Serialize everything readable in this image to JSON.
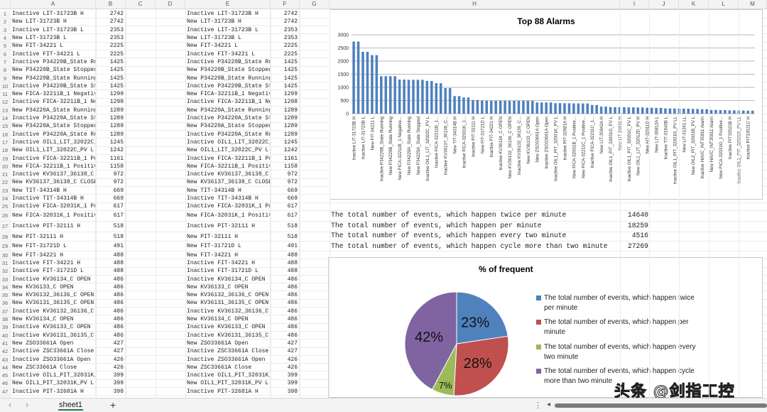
{
  "columns": [
    "A",
    "B",
    "C",
    "D",
    "E",
    "F",
    "G",
    "H",
    "I",
    "J",
    "K",
    "L",
    "M"
  ],
  "rows": [
    [
      "Inactive LIT-31723B H",
      "2742"
    ],
    [
      "New LIT-31723B H",
      "2742"
    ],
    [
      "Inactive LIT-31723B L",
      "2353"
    ],
    [
      "New LIT-31723B L",
      "2353"
    ],
    [
      "New FIT-34221 L",
      "2225"
    ],
    [
      "Inactive FIT-34221 L",
      "2225"
    ],
    [
      "Inactive P34220B_State Ru",
      "1425"
    ],
    [
      "New P34220B_State Stopped",
      "1425"
    ],
    [
      "New P34220B_State Running",
      "1425"
    ],
    [
      "Inactive P34220B_State St",
      "1425"
    ],
    [
      "New FICA-32211B_1 Negativ",
      "1299"
    ],
    [
      "Inactive FICA-32211B_1 Ne",
      "1298"
    ],
    [
      "New P34220A_State Running",
      "1289"
    ],
    [
      "Inactive P34220A_State St",
      "1289"
    ],
    [
      "New P34220A_State Stopped",
      "1289"
    ],
    [
      "Inactive P34220A_State Ru",
      "1289"
    ],
    [
      "Inactive OIL1_LIT_32022C_",
      "1245"
    ],
    [
      "New OIL1_LIT_32022C_PV L",
      "1242"
    ],
    [
      "Inactive FICA-32211B_1 Po",
      "1161"
    ],
    [
      "New FICA-32211B_1 Positiv",
      "1158"
    ],
    [
      "Inactive KV36137_36138_C",
      "972"
    ],
    [
      "New KV36137_36138_C CLOSE",
      "972"
    ],
    [
      "New TIT-34314B H",
      "669"
    ],
    [
      "Inactive TIT-34314B H",
      "669"
    ],
    [
      "Inactive FICA-32031K_1 Po",
      "617"
    ],
    [
      "New FICA-32031K_1 Positiv",
      "617"
    ],
    [
      "Inactive PIT-32111 H",
      "518"
    ],
    [
      "New PIT-32111 H",
      "518"
    ],
    [
      "New FIT-31721D L",
      "491"
    ],
    [
      "New FIT-34221 H",
      "488"
    ],
    [
      "Inactive FIT-34221 H",
      "488"
    ],
    [
      "Inactive FIT-31721D L",
      "488"
    ],
    [
      "Inactive KV36134_C OPEN",
      "486"
    ],
    [
      "New KV36133_C OPEN",
      "486"
    ],
    [
      "New KV36132_36136_C OPEN",
      "486"
    ],
    [
      "New KV36131_36135_C OPEN",
      "486"
    ],
    [
      "Inactive KV36132_36136_C",
      "486"
    ],
    [
      "New KV36134_C OPEN",
      "486"
    ],
    [
      "Inactive KV36133_C OPEN",
      "486"
    ],
    [
      "Inactive KV36131_36135_C",
      "486"
    ],
    [
      "New ZSO33661A Open",
      "427"
    ],
    [
      "Inactive ZSC33661A Close",
      "427"
    ],
    [
      "Inactive ZSO33661A Open",
      "426"
    ],
    [
      "New ZSC33661A Close",
      "426"
    ],
    [
      "Inactive OIL1_PIT_32031K_",
      "399"
    ],
    [
      "New OIL1_PIT_32031K_PV L",
      "399"
    ],
    [
      "Inactive PIT-32681A H",
      "398"
    ]
  ],
  "stats": [
    {
      "label": "The total number of events, which happen twice per minute",
      "value": "14640"
    },
    {
      "label": "The total number of events, which happen per minute",
      "value": "18259"
    },
    {
      "label": "The total number of events, which happen every two minute",
      "value": "4516"
    },
    {
      "label": "The total number of events, which happen cycle more than two minute",
      "value": "27269"
    }
  ],
  "chart_data": [
    {
      "type": "bar",
      "title": "Top 88 Alarms",
      "ylim": [
        0,
        3000
      ],
      "yticks": [
        "0",
        "500",
        "1000",
        "1500",
        "2000",
        "2500",
        "3000"
      ],
      "grid": true,
      "color": "#4f81bd",
      "values": [
        2742,
        2742,
        2353,
        2353,
        2225,
        2225,
        1425,
        1425,
        1425,
        1425,
        1299,
        1298,
        1289,
        1289,
        1289,
        1289,
        1245,
        1242,
        1161,
        1158,
        972,
        972,
        669,
        669,
        617,
        617,
        518,
        518,
        491,
        488,
        488,
        488,
        486,
        486,
        486,
        486,
        486,
        486,
        486,
        486,
        427,
        427,
        426,
        426,
        399,
        399,
        398,
        395,
        390,
        390,
        388,
        388,
        330,
        330,
        270,
        270,
        250,
        250,
        245,
        245,
        240,
        240,
        235,
        235,
        225,
        225,
        220,
        220,
        200,
        200,
        195,
        195,
        190,
        190,
        180,
        180,
        170,
        170,
        140,
        140,
        135,
        135,
        125,
        125,
        120,
        120,
        115,
        115
      ],
      "tick_labels": [
        "Inactive LIT-31723B H",
        "Inactive LIT-31723B L",
        "New FIT-34221 L",
        "Inactive P34220B_State Running",
        "New P34220B_State Running",
        "New FICA-32211B_1 Negative...",
        "New P34220A_State Running",
        "New P34220A_State Stopped",
        "Inactive OIL1_LIT_32022C_PV L",
        "Inactive FICA-32211B_1...",
        "Inactive KV36137_36138_C...",
        "New TIT-34314B H",
        "Inactive FICA-32031K_1...",
        "Inactive PIT-32111 H",
        "New FIT-31721D L",
        "Inactive FIT-34221 H",
        "Inactive KV36134_C OPEN",
        "New KV36132_36136_C OPEN",
        "Inactive KV36132_36136_C...",
        "New KV36133_C OPEN",
        "New ZSO33661A Open",
        "Inactive ZSO33661A Open",
        "Inactive OIL1_PIT_32031K_PV L",
        "Inactive PIT-32681A H",
        "New FICA-32031B_1 Positive...",
        "New FICA-32211C_1 Positive...",
        "Inactive FICA-32211C_1...",
        "New LIT-35942A H",
        "Inactive OIL1_PIT_32031G_PV L",
        "New LIT-31611 H",
        "Inactive OIL1_PIT_32031C_PV L",
        "New OIL1_LIT_32012D_PV H",
        "New AIT-32011D H",
        "New LIT-36812A L",
        "Inactive TIT-31943B L",
        "Inactive OIL1_PIT_32031G_PV LL",
        "New LIT-31361 LL",
        "New OIL2_PIT_32031B_PV L",
        "Inactive HAVC_INT35811 Alarm",
        "New HAVC_INT35811 Alarm",
        "New FICA-32031G_1 Positive...",
        "Inactive PIT33521B H",
        "Inactive OIL1_PIT_32031K_PV LL",
        "Inactive PIT33521C H"
      ]
    },
    {
      "type": "pie",
      "title": "% of frequent events",
      "legend": "right",
      "slices": [
        {
          "label": "The total number of events, which happen twice per minute",
          "value": 14640,
          "pct": "23%",
          "color": "#4f81bd"
        },
        {
          "label": "The total number of events, which happen per minute",
          "value": 18259,
          "pct": "28%",
          "color": "#c0504d"
        },
        {
          "label": "The total number of events, which happen every two minute",
          "value": 4516,
          "pct": "7%",
          "color": "#9bbb59"
        },
        {
          "label": "The total number of events, which happen cycle more than two minute",
          "value": 27269,
          "pct": "42%",
          "color": "#8064a2"
        }
      ]
    }
  ],
  "legend_lines": [
    [
      "The total number of events, which happen twice",
      "per minute"
    ],
    [
      "The total number of events, which happen per",
      "minute"
    ],
    [
      "The total number of events, which happen every",
      "two minute"
    ],
    [
      "The total number of events, which happen cycle",
      "more than two minute"
    ]
  ],
  "tabs": {
    "prev": "‹",
    "next": "›",
    "sheet": "sheet1",
    "add": "+",
    "more": "⋮",
    "scroll_left": "◂"
  },
  "watermark": "头条 @剑指工控"
}
